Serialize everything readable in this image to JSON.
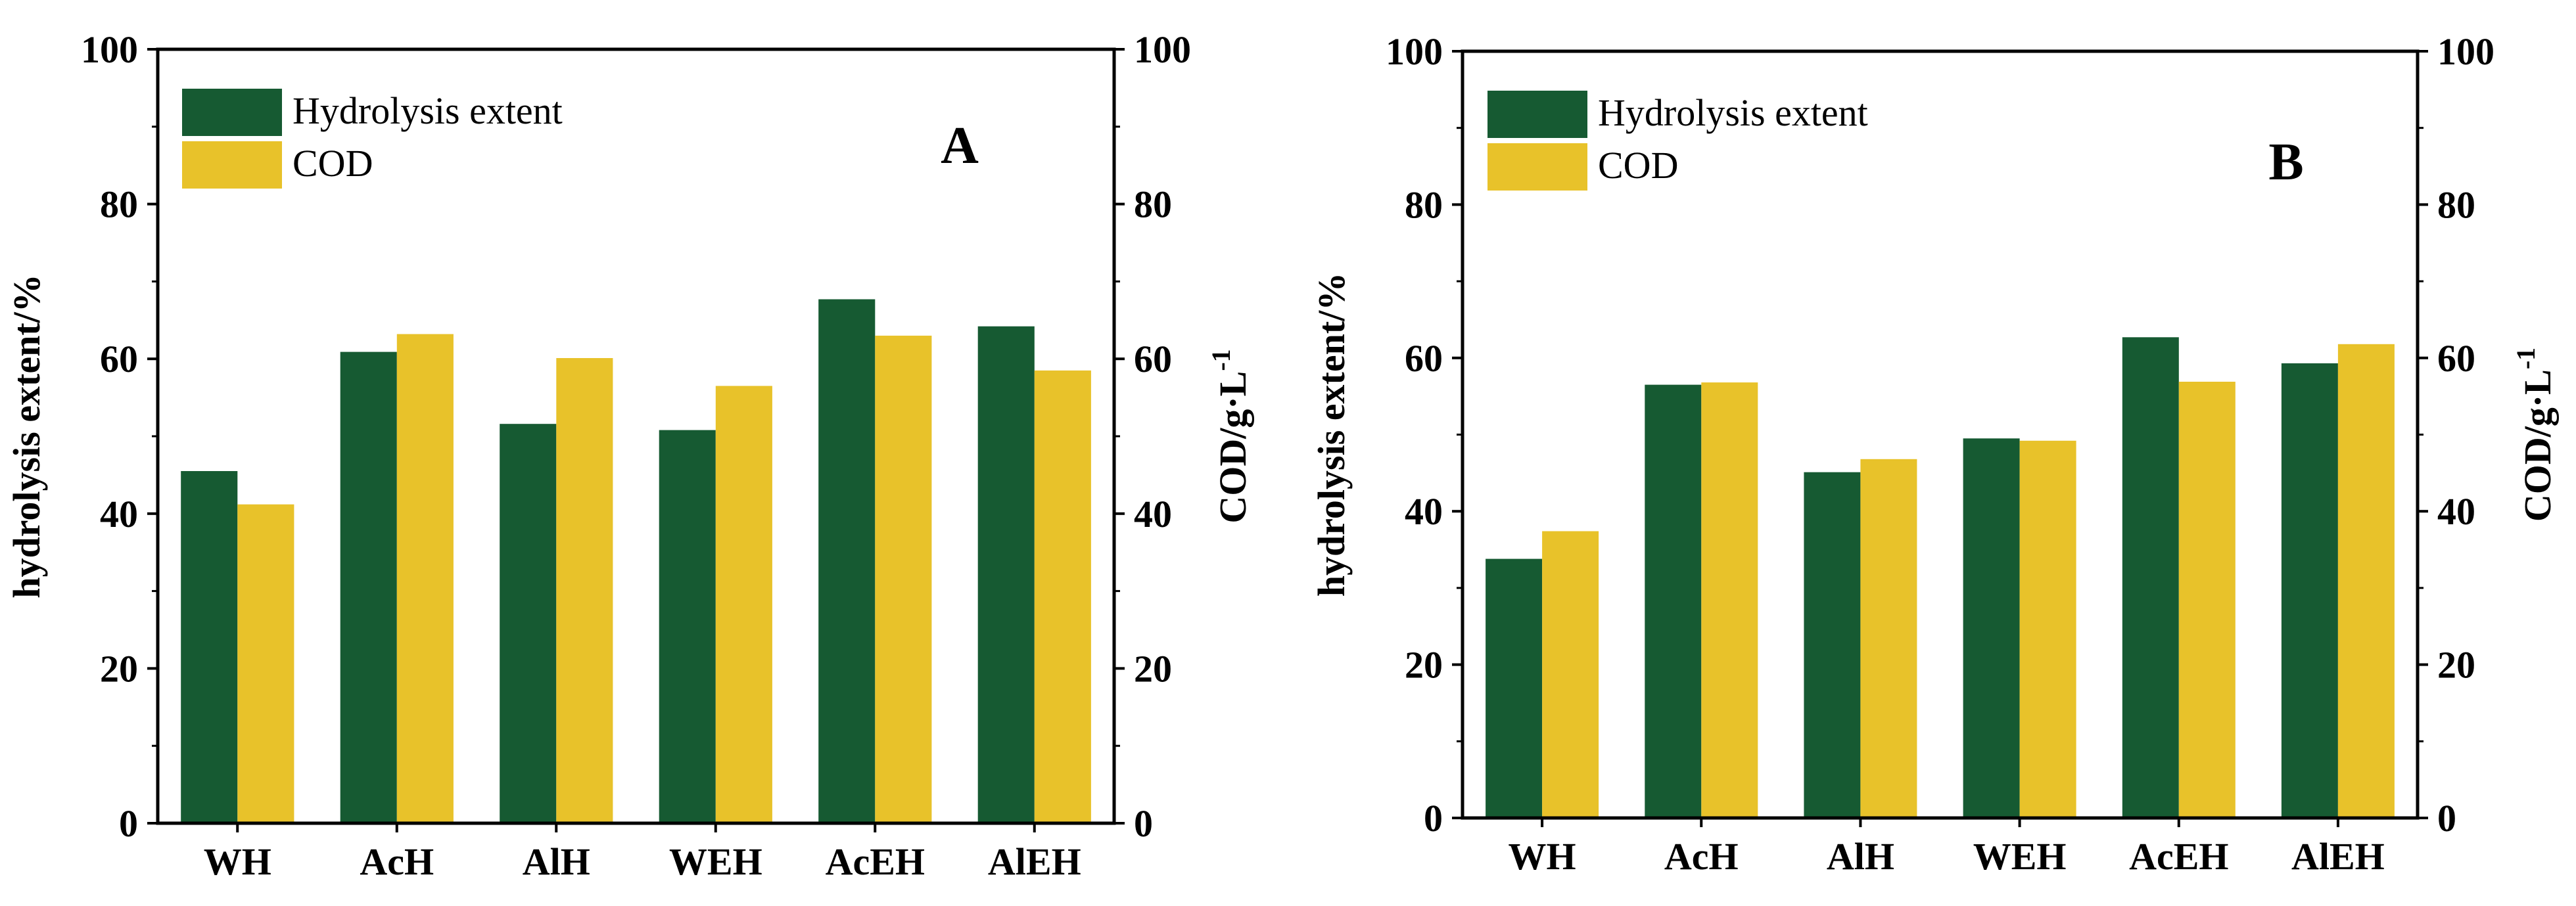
{
  "colors": {
    "hydrolysis": "#165a32",
    "cod": "#e8c22a",
    "axis": "#000000"
  },
  "chart_data": [
    {
      "type": "bar",
      "panel": "A",
      "categories": [
        "WH",
        "AcH",
        "AlH",
        "WEH",
        "AcEH",
        "AlEH"
      ],
      "series": [
        {
          "name": "Hydrolysis extent",
          "axis": "left",
          "values": [
            45.5,
            60.9,
            51.6,
            50.8,
            67.7,
            64.2
          ]
        },
        {
          "name": "COD",
          "axis": "right",
          "values": [
            41.2,
            63.2,
            60.1,
            56.5,
            63.0,
            58.5
          ]
        }
      ],
      "ylabel": "hydrolysis extent/%",
      "y2label": "COD/g·L",
      "y2label_sup": "-1",
      "ylim": [
        0,
        100
      ],
      "y2lim": [
        0,
        100
      ],
      "yticks": [
        0,
        20,
        40,
        60,
        80,
        100
      ],
      "y2ticks": [
        0,
        20,
        40,
        60,
        80,
        100
      ],
      "legend_position": "top-left"
    },
    {
      "type": "bar",
      "panel": "B",
      "categories": [
        "WH",
        "AcH",
        "AlH",
        "WEH",
        "AcEH",
        "AlEH"
      ],
      "series": [
        {
          "name": "Hydrolysis extent",
          "axis": "left",
          "values": [
            33.8,
            56.5,
            45.1,
            49.5,
            62.7,
            59.3
          ]
        },
        {
          "name": "COD",
          "axis": "right",
          "values": [
            37.4,
            56.8,
            46.8,
            49.2,
            56.9,
            61.8
          ]
        }
      ],
      "ylabel": "hydrolysis extent/%",
      "y2label": "COD/g·L",
      "y2label_sup": "-1",
      "ylim": [
        0,
        100
      ],
      "y2lim": [
        0,
        100
      ],
      "yticks": [
        0,
        20,
        40,
        60,
        80,
        100
      ],
      "y2ticks": [
        0,
        20,
        40,
        60,
        80,
        100
      ],
      "legend_position": "top-left"
    }
  ]
}
